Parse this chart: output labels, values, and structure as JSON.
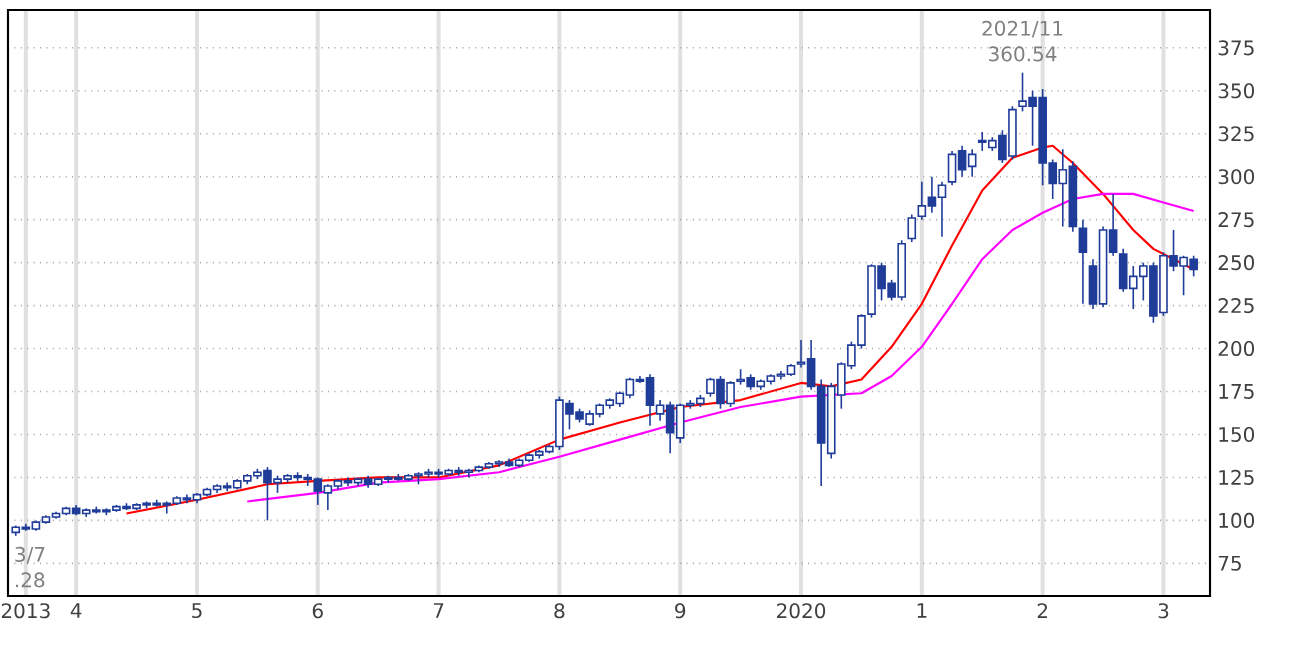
{
  "chart_data": {
    "type": "candlestick",
    "color": "#1f3c99",
    "x": [
      "2013-07",
      "2013-08",
      "2013-09",
      "2013-10",
      "2013-11",
      "2013-12",
      "2014-01",
      "2014-02",
      "2014-03",
      "2014-04",
      "2014-05",
      "2014-06",
      "2014-07",
      "2014-08",
      "2014-09",
      "2014-10",
      "2014-11",
      "2014-12",
      "2015-01",
      "2015-02",
      "2015-03",
      "2015-04",
      "2015-05",
      "2015-06",
      "2015-07",
      "2015-08",
      "2015-09",
      "2015-10",
      "2015-11",
      "2015-12",
      "2016-01",
      "2016-02",
      "2016-03",
      "2016-04",
      "2016-05",
      "2016-06",
      "2016-07",
      "2016-08",
      "2016-09",
      "2016-10",
      "2016-11",
      "2016-12",
      "2017-01",
      "2017-02",
      "2017-03",
      "2017-04",
      "2017-05",
      "2017-06",
      "2017-07",
      "2017-08",
      "2017-09",
      "2017-10",
      "2017-11",
      "2017-12",
      "2018-01",
      "2018-02",
      "2018-03",
      "2018-04",
      "2018-05",
      "2018-06",
      "2018-07",
      "2018-08",
      "2018-09",
      "2018-10",
      "2018-11",
      "2018-12",
      "2019-01",
      "2019-02",
      "2019-03",
      "2019-04",
      "2019-05",
      "2019-06",
      "2019-07",
      "2019-08",
      "2019-09",
      "2019-10",
      "2019-11",
      "2019-12",
      "2020-01",
      "2020-02",
      "2020-03",
      "2020-04",
      "2020-05",
      "2020-06",
      "2020-07",
      "2020-08",
      "2020-09",
      "2020-10",
      "2020-11",
      "2020-12",
      "2021-01",
      "2021-02",
      "2021-03",
      "2021-04",
      "2021-05",
      "2021-06",
      "2021-07",
      "2021-08",
      "2021-09",
      "2021-10",
      "2021-11",
      "2021-12",
      "2022-01",
      "2022-02",
      "2022-03",
      "2022-04",
      "2022-05",
      "2022-06",
      "2022-07",
      "2022-08",
      "2022-09",
      "2022-10",
      "2022-11",
      "2022-12",
      "2023-01",
      "2023-02",
      "2023-03",
      "2023-04"
    ],
    "ohlc": [
      [
        93,
        97,
        91,
        96
      ],
      [
        96,
        98,
        94,
        95
      ],
      [
        95,
        100,
        94,
        99
      ],
      [
        99,
        103,
        98,
        102
      ],
      [
        102,
        105,
        101,
        104
      ],
      [
        104,
        108,
        103,
        107
      ],
      [
        107,
        109,
        103,
        104
      ],
      [
        104,
        107,
        102,
        106
      ],
      [
        106,
        108,
        104,
        105
      ],
      [
        105,
        107,
        103,
        106
      ],
      [
        106,
        109,
        105,
        108
      ],
      [
        108,
        110,
        106,
        107
      ],
      [
        107,
        110,
        106,
        109
      ],
      [
        109,
        111,
        107,
        110
      ],
      [
        110,
        112,
        108,
        109
      ],
      [
        109,
        111,
        104,
        110
      ],
      [
        110,
        114,
        109,
        113
      ],
      [
        113,
        115,
        110,
        112
      ],
      [
        112,
        116,
        110,
        115
      ],
      [
        115,
        119,
        114,
        118
      ],
      [
        118,
        121,
        116,
        120
      ],
      [
        120,
        122,
        117,
        119
      ],
      [
        119,
        124,
        118,
        123
      ],
      [
        123,
        127,
        121,
        126
      ],
      [
        126,
        130,
        124,
        128
      ],
      [
        129,
        131,
        100,
        122
      ],
      [
        122,
        126,
        116,
        124
      ],
      [
        124,
        127,
        122,
        126
      ],
      [
        126,
        128,
        123,
        125
      ],
      [
        125,
        127,
        120,
        124
      ],
      [
        124,
        125,
        109,
        117
      ],
      [
        116,
        121,
        106,
        120
      ],
      [
        120,
        124,
        118,
        123
      ],
      [
        123,
        125,
        120,
        122
      ],
      [
        122,
        125,
        120,
        124
      ],
      [
        124,
        126,
        119,
        121
      ],
      [
        121,
        125,
        120,
        124
      ],
      [
        124,
        126,
        122,
        125
      ],
      [
        125,
        127,
        123,
        124
      ],
      [
        124,
        127,
        123,
        126
      ],
      [
        126,
        128,
        121,
        127
      ],
      [
        127,
        130,
        125,
        128
      ],
      [
        128,
        130,
        125,
        127
      ],
      [
        127,
        130,
        126,
        129
      ],
      [
        129,
        131,
        126,
        128
      ],
      [
        128,
        130,
        125,
        129
      ],
      [
        129,
        132,
        128,
        131
      ],
      [
        131,
        134,
        130,
        133
      ],
      [
        133,
        135,
        131,
        134
      ],
      [
        134,
        136,
        131,
        132
      ],
      [
        132,
        136,
        131,
        135
      ],
      [
        135,
        139,
        134,
        138
      ],
      [
        138,
        141,
        136,
        140
      ],
      [
        140,
        144,
        139,
        143
      ],
      [
        143,
        172,
        141,
        170
      ],
      [
        168,
        170,
        153,
        162
      ],
      [
        163,
        165,
        157,
        159
      ],
      [
        156,
        164,
        155,
        162
      ],
      [
        162,
        168,
        160,
        167
      ],
      [
        167,
        171,
        165,
        170
      ],
      [
        168,
        175,
        166,
        174
      ],
      [
        173,
        183,
        171,
        182
      ],
      [
        182,
        184,
        180,
        181
      ],
      [
        183,
        185,
        155,
        167
      ],
      [
        162,
        170,
        158,
        167
      ],
      [
        167,
        169,
        139,
        151
      ],
      [
        148,
        168,
        145,
        167
      ],
      [
        167,
        170,
        165,
        168
      ],
      [
        168,
        173,
        166,
        171
      ],
      [
        174,
        183,
        172,
        182
      ],
      [
        182,
        184,
        165,
        168
      ],
      [
        168,
        181,
        166,
        180
      ],
      [
        181,
        188,
        179,
        182
      ],
      [
        183,
        185,
        176,
        178
      ],
      [
        178,
        182,
        176,
        181
      ],
      [
        181,
        185,
        179,
        184
      ],
      [
        184,
        187,
        182,
        185
      ],
      [
        185,
        191,
        184,
        190
      ],
      [
        191,
        205,
        189,
        192
      ],
      [
        194,
        205,
        176,
        178
      ],
      [
        178,
        182,
        120,
        145
      ],
      [
        139,
        180,
        136,
        178
      ],
      [
        173,
        192,
        165,
        191
      ],
      [
        190,
        204,
        188,
        202
      ],
      [
        202,
        220,
        200,
        219
      ],
      [
        220,
        249,
        218,
        248
      ],
      [
        248,
        250,
        228,
        235
      ],
      [
        238,
        240,
        228,
        230
      ],
      [
        230,
        263,
        228,
        261
      ],
      [
        264,
        278,
        262,
        276
      ],
      [
        277,
        297,
        275,
        283
      ],
      [
        288,
        300,
        279,
        283
      ],
      [
        288,
        297,
        265,
        295
      ],
      [
        297,
        315,
        295,
        313
      ],
      [
        315,
        318,
        300,
        304
      ],
      [
        306,
        316,
        300,
        313
      ],
      [
        320,
        326,
        315,
        321
      ],
      [
        317,
        323,
        315,
        321
      ],
      [
        324,
        327,
        308,
        310
      ],
      [
        312,
        341,
        310,
        339
      ],
      [
        341,
        360.54,
        338,
        344
      ],
      [
        346,
        350,
        318,
        341
      ],
      [
        346,
        351,
        295,
        308
      ],
      [
        308,
        310,
        287,
        296
      ],
      [
        296,
        316,
        271,
        304
      ],
      [
        306,
        309,
        268,
        271
      ],
      [
        270,
        275,
        226,
        256
      ],
      [
        248,
        252,
        223,
        226
      ],
      [
        226,
        271,
        224,
        269
      ],
      [
        269,
        290,
        254,
        256
      ],
      [
        255,
        258,
        233,
        235
      ],
      [
        235,
        248,
        223,
        242
      ],
      [
        242,
        250,
        228,
        248
      ],
      [
        248,
        250,
        215,
        219
      ],
      [
        221,
        256,
        219,
        254
      ],
      [
        254,
        269,
        245,
        248
      ],
      [
        248,
        254,
        231,
        253
      ],
      [
        252,
        254,
        242,
        246
      ]
    ],
    "series": [
      {
        "type": "line",
        "color": "#ff0000",
        "x": [
          "2014-06",
          "2015-01",
          "2015-08",
          "2016-01",
          "2016-07",
          "2017-01",
          "2017-07",
          "2018-01",
          "2018-07",
          "2019-01",
          "2019-07",
          "2020-01",
          "2020-04",
          "2020-07",
          "2020-10",
          "2021-01",
          "2021-04",
          "2021-07",
          "2021-10",
          "2022-01",
          "2022-02",
          "2022-04",
          "2022-07",
          "2022-10",
          "2022-12",
          "2023-02",
          "2023-04"
        ],
        "values": [
          104,
          112,
          121,
          123,
          125,
          125,
          132,
          147,
          157,
          166,
          170,
          180,
          178,
          182,
          201,
          226,
          260,
          292,
          311,
          317,
          318,
          308,
          290,
          269,
          258,
          252,
          246
        ]
      },
      {
        "type": "line",
        "color": "#ff00ff",
        "x": [
          "2015-06",
          "2016-01",
          "2016-07",
          "2017-01",
          "2017-07",
          "2018-01",
          "2018-07",
          "2019-01",
          "2019-07",
          "2020-01",
          "2020-07",
          "2020-10",
          "2021-01",
          "2021-04",
          "2021-07",
          "2021-10",
          "2022-01",
          "2022-04",
          "2022-07",
          "2022-10",
          "2023-01",
          "2023-04"
        ],
        "values": [
          111,
          116,
          122,
          124,
          128,
          137,
          147,
          157,
          166,
          172,
          174,
          184,
          201,
          226,
          252,
          269,
          279,
          287,
          290,
          290,
          285,
          280
        ]
      }
    ],
    "xlim": [
      "2013-06-08",
      "2023-05-20"
    ],
    "xticks": [
      {
        "value": "2013-08",
        "label": "2013"
      },
      {
        "value": "2014-01",
        "label": "4"
      },
      {
        "value": "2015-01",
        "label": "5"
      },
      {
        "value": "2016-01",
        "label": "6"
      },
      {
        "value": "2017-01",
        "label": "7"
      },
      {
        "value": "2018-01",
        "label": "8"
      },
      {
        "value": "2019-01",
        "label": "9"
      },
      {
        "value": "2020-01",
        "label": "2020"
      },
      {
        "value": "2021-01",
        "label": "1"
      },
      {
        "value": "2022-01",
        "label": "2"
      },
      {
        "value": "2023-01",
        "label": "3"
      }
    ],
    "ylim": [
      56,
      397
    ],
    "yticks": [
      75,
      100,
      125,
      150,
      175,
      200,
      225,
      250,
      275,
      300,
      325,
      350,
      375
    ],
    "grid": true,
    "annotations": [
      {
        "text": "2021/11",
        "x": "2021-11",
        "y": 360.54
      },
      {
        "text": "360.54",
        "x": "2021-11",
        "y": 360.54
      },
      "3/7",
      ".28"
    ]
  }
}
